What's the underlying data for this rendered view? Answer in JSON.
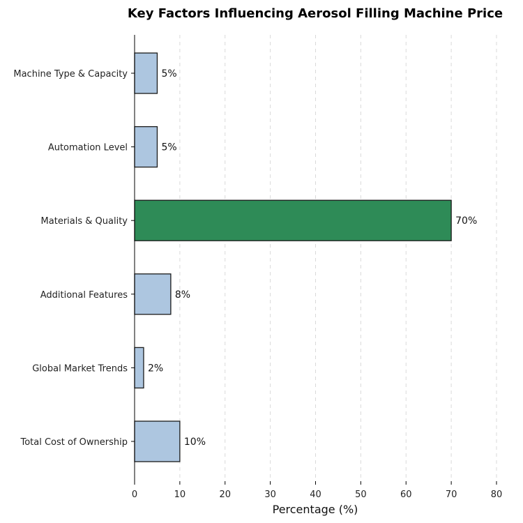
{
  "chart_data": {
    "type": "bar",
    "orientation": "horizontal",
    "title": "Key Factors Influencing Aerosol Filling Machine Price",
    "xlabel": "Percentage (%)",
    "ylabel": "",
    "xlim": [
      0,
      80
    ],
    "x_ticks": [
      0,
      10,
      20,
      30,
      40,
      50,
      60,
      70,
      80
    ],
    "grid": "vertical-dashed",
    "categories": [
      "Machine Type & Capacity",
      "Automation Level",
      "Materials & Quality",
      "Additional Features",
      "Global Market Trends",
      "Total Cost of Ownership"
    ],
    "values": [
      5,
      5,
      70,
      8,
      2,
      10
    ],
    "data_labels": [
      "5%",
      "5%",
      "70%",
      "8%",
      "2%",
      "10%"
    ],
    "highlight_index": 2,
    "colors": {
      "bar": "#adc6e0",
      "highlight": "#2e8b57",
      "edge": "#1a1a1a"
    }
  }
}
